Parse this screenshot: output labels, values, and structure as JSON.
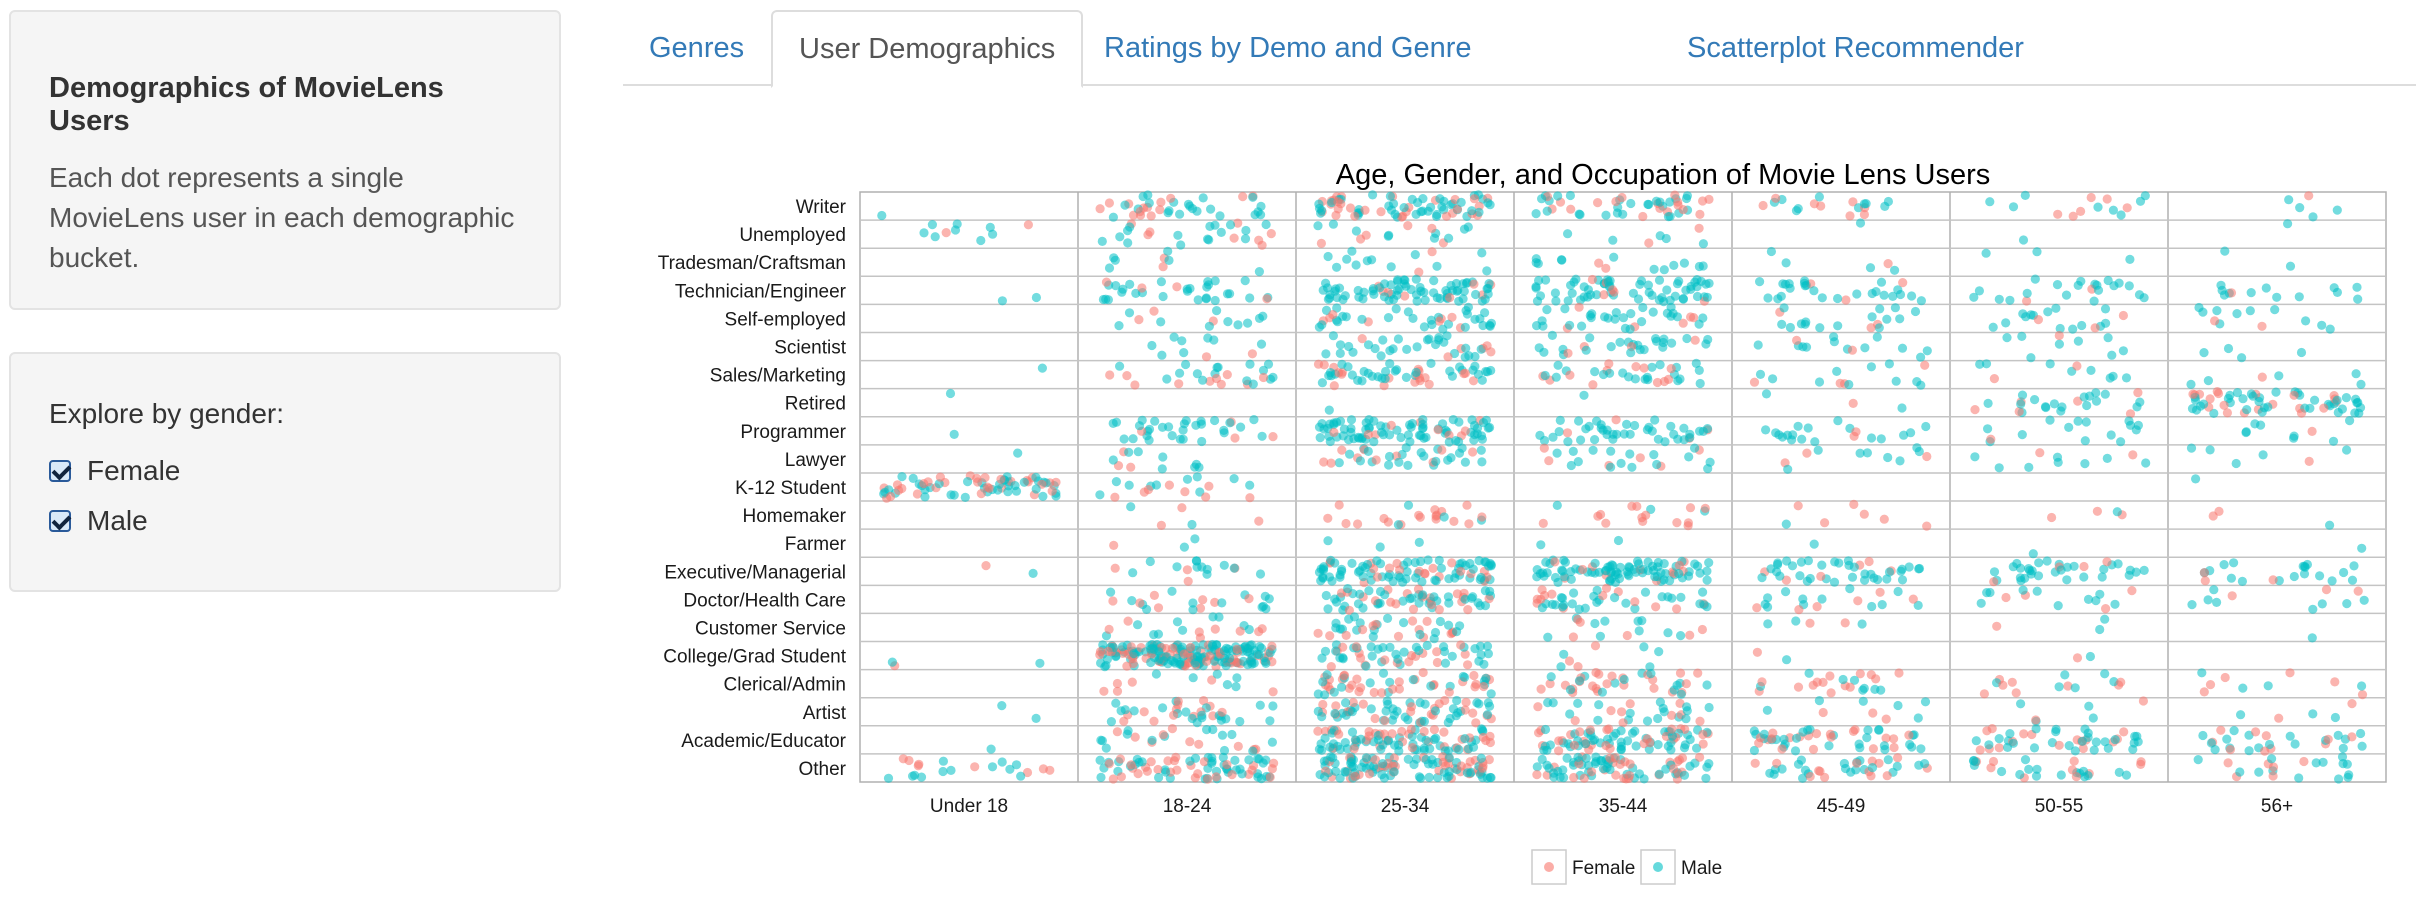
{
  "sidebar": {
    "about_title": "Demographics of MovieLens Users",
    "about_text": "Each dot represents a single MovieLens user in each demographic bucket.",
    "gender_label": "Explore by gender:",
    "checkboxes": [
      {
        "label": "Female",
        "checked": true
      },
      {
        "label": "Male",
        "checked": true
      }
    ]
  },
  "tabs": [
    {
      "label": "Genres",
      "active": false
    },
    {
      "label": "User Demographics",
      "active": true
    },
    {
      "label": "Ratings by Demo and Genre",
      "active": false
    },
    {
      "label": "Scatterplot Recommender",
      "active": false
    }
  ],
  "chart_data": {
    "type": "scatter",
    "title": "Age, Gender, and Occupation of Movie Lens Users",
    "xlabel": "",
    "ylabel": "",
    "x_categories": [
      "Under 18",
      "18-24",
      "25-34",
      "35-44",
      "45-49",
      "50-55",
      "56+"
    ],
    "y_categories": [
      "Writer",
      "Unemployed",
      "Tradesman/Craftsman",
      "Technician/Engineer",
      "Self-employed",
      "Scientist",
      "Sales/Marketing",
      "Retired",
      "Programmer",
      "Lawyer",
      "K-12 Student",
      "Homemaker",
      "Farmer",
      "Executive/Managerial",
      "Doctor/Health Care",
      "Customer Service",
      "College/Grad Student",
      "Clerical/Admin",
      "Artist",
      "Academic/Educator",
      "Other"
    ],
    "grid": true,
    "legend_position": "bottom",
    "series": [
      {
        "name": "Female",
        "color": "#f8766d"
      },
      {
        "name": "Male",
        "color": "#00bfc4"
      }
    ],
    "counts_note_free": true,
    "cell_counts": {
      "Writer": [
        [
          0,
          1
        ],
        [
          14,
          22
        ],
        [
          30,
          45
        ],
        [
          18,
          28
        ],
        [
          8,
          10
        ],
        [
          6,
          8
        ],
        [
          1,
          4
        ]
      ],
      "Unemployed": [
        [
          2,
          8
        ],
        [
          8,
          16
        ],
        [
          6,
          10
        ],
        [
          2,
          5
        ],
        [
          0,
          1
        ],
        [
          0,
          1
        ],
        [
          0,
          1
        ]
      ],
      "Tradesman/Craftsman": [
        [
          0,
          0
        ],
        [
          2,
          6
        ],
        [
          2,
          12
        ],
        [
          2,
          12
        ],
        [
          1,
          4
        ],
        [
          0,
          3
        ],
        [
          0,
          2
        ]
      ],
      "Technician/Engineer": [
        [
          0,
          2
        ],
        [
          4,
          28
        ],
        [
          8,
          70
        ],
        [
          6,
          60
        ],
        [
          3,
          25
        ],
        [
          2,
          20
        ],
        [
          1,
          12
        ]
      ],
      "Self-employed": [
        [
          0,
          0
        ],
        [
          3,
          10
        ],
        [
          8,
          30
        ],
        [
          6,
          28
        ],
        [
          3,
          15
        ],
        [
          3,
          14
        ],
        [
          2,
          10
        ]
      ],
      "Scientist": [
        [
          0,
          0
        ],
        [
          2,
          8
        ],
        [
          6,
          28
        ],
        [
          4,
          24
        ],
        [
          2,
          12
        ],
        [
          1,
          8
        ],
        [
          0,
          4
        ]
      ],
      "Sales/Marketing": [
        [
          0,
          1
        ],
        [
          10,
          16
        ],
        [
          20,
          35
        ],
        [
          12,
          22
        ],
        [
          4,
          10
        ],
        [
          2,
          8
        ],
        [
          1,
          5
        ]
      ],
      "Retired": [
        [
          0,
          1
        ],
        [
          0,
          0
        ],
        [
          0,
          1
        ],
        [
          0,
          1
        ],
        [
          1,
          2
        ],
        [
          6,
          18
        ],
        [
          20,
          40
        ]
      ],
      "Programmer": [
        [
          0,
          1
        ],
        [
          4,
          30
        ],
        [
          10,
          75
        ],
        [
          4,
          40
        ],
        [
          2,
          18
        ],
        [
          1,
          14
        ],
        [
          1,
          8
        ]
      ],
      "Lawyer": [
        [
          0,
          1
        ],
        [
          3,
          8
        ],
        [
          10,
          24
        ],
        [
          6,
          16
        ],
        [
          3,
          8
        ],
        [
          2,
          8
        ],
        [
          1,
          5
        ]
      ],
      "K-12 Student": [
        [
          30,
          40
        ],
        [
          8,
          10
        ],
        [
          0,
          0
        ],
        [
          0,
          0
        ],
        [
          0,
          0
        ],
        [
          0,
          0
        ],
        [
          0,
          1
        ]
      ],
      "Homemaker": [
        [
          0,
          0
        ],
        [
          3,
          2
        ],
        [
          18,
          4
        ],
        [
          14,
          3
        ],
        [
          6,
          1
        ],
        [
          3,
          1
        ],
        [
          2,
          1
        ]
      ],
      "Farmer": [
        [
          0,
          0
        ],
        [
          1,
          2
        ],
        [
          0,
          3
        ],
        [
          0,
          2
        ],
        [
          0,
          1
        ],
        [
          0,
          1
        ],
        [
          0,
          1
        ]
      ],
      "Executive/Managerial": [
        [
          1,
          1
        ],
        [
          4,
          12
        ],
        [
          20,
          70
        ],
        [
          12,
          80
        ],
        [
          6,
          35
        ],
        [
          4,
          30
        ],
        [
          3,
          18
        ]
      ],
      "Doctor/Health Care": [
        [
          0,
          0
        ],
        [
          8,
          14
        ],
        [
          22,
          40
        ],
        [
          14,
          28
        ],
        [
          6,
          12
        ],
        [
          4,
          10
        ],
        [
          3,
          8
        ]
      ],
      "Customer Service": [
        [
          0,
          0
        ],
        [
          8,
          10
        ],
        [
          14,
          20
        ],
        [
          6,
          10
        ],
        [
          2,
          3
        ],
        [
          1,
          2
        ],
        [
          0,
          1
        ]
      ],
      "College/Grad Student": [
        [
          1,
          2
        ],
        [
          70,
          130
        ],
        [
          18,
          35
        ],
        [
          3,
          5
        ],
        [
          1,
          1
        ],
        [
          1,
          1
        ],
        [
          0,
          0
        ]
      ],
      "Clerical/Admin": [
        [
          0,
          0
        ],
        [
          6,
          6
        ],
        [
          30,
          20
        ],
        [
          24,
          14
        ],
        [
          14,
          8
        ],
        [
          8,
          6
        ],
        [
          6,
          4
        ]
      ],
      "Artist": [
        [
          0,
          2
        ],
        [
          14,
          22
        ],
        [
          24,
          40
        ],
        [
          10,
          18
        ],
        [
          3,
          6
        ],
        [
          2,
          4
        ],
        [
          2,
          3
        ]
      ],
      "Academic/Educator": [
        [
          0,
          1
        ],
        [
          10,
          14
        ],
        [
          35,
          55
        ],
        [
          30,
          50
        ],
        [
          20,
          30
        ],
        [
          16,
          28
        ],
        [
          10,
          18
        ]
      ],
      "Other": [
        [
          8,
          12
        ],
        [
          30,
          45
        ],
        [
          40,
          70
        ],
        [
          30,
          50
        ],
        [
          14,
          22
        ],
        [
          10,
          18
        ],
        [
          6,
          14
        ]
      ]
    }
  }
}
